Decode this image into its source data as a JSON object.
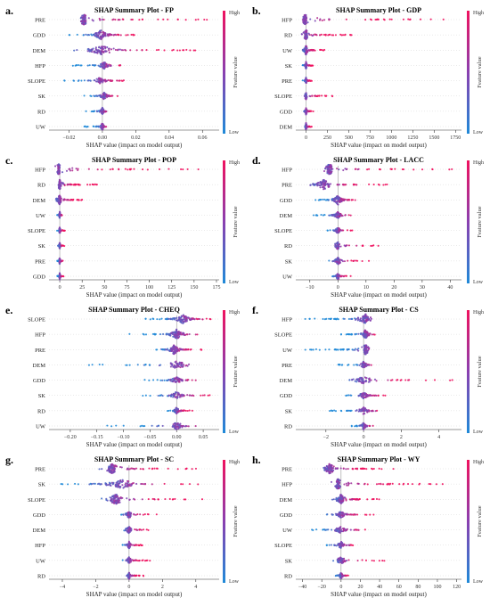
{
  "colorbar": {
    "high_label": "High",
    "low_label": "Low",
    "title": "Feature value",
    "low_color": "#1f8ad8",
    "mid_color": "#8a3fb0",
    "high_color": "#f0115e"
  },
  "xlabel": "SHAP value (impact on model output)",
  "chart_data": [
    {
      "panel": "a.",
      "type": "scatter",
      "title": "SHAP Summary Plot - FP",
      "features": [
        "PRE",
        "GDD",
        "DEM",
        "HFP",
        "SLOPE",
        "SK",
        "RD",
        "UW"
      ],
      "xticks": [
        -0.02,
        0.0,
        0.02,
        0.04,
        0.06
      ],
      "xtick_labels": [
        "−0.02",
        "0.00",
        "0.02",
        "0.04",
        "0.06"
      ],
      "xlim": [
        -0.032,
        0.07
      ],
      "ranges": [
        [
          -0.015,
          0.064
        ],
        [
          -0.022,
          0.021
        ],
        [
          -0.021,
          0.062
        ],
        [
          -0.019,
          0.012
        ],
        [
          -0.028,
          0.014
        ],
        [
          -0.012,
          0.012
        ],
        [
          -0.011,
          0.004
        ],
        [
          -0.011,
          0.003
        ]
      ],
      "peaks": [
        -0.011,
        -0.001,
        0.0,
        0.001,
        -0.002,
        0.001,
        0.0,
        0.0
      ]
    },
    {
      "panel": "b.",
      "type": "scatter",
      "title": "SHAP Summary Plot - GDP",
      "features": [
        "HFP",
        "RD",
        "UW",
        "SK",
        "PRE",
        "SLOPE",
        "GDD",
        "DEM"
      ],
      "xticks": [
        0,
        250,
        500,
        750,
        1000,
        1250,
        1500,
        1750
      ],
      "xtick_labels": [
        "0",
        "250",
        "500",
        "750",
        "1000",
        "1250",
        "1500",
        "1750"
      ],
      "xlim": [
        -120,
        1820
      ],
      "ranges": [
        [
          -70,
          1680
        ],
        [
          -60,
          560
        ],
        [
          -50,
          220
        ],
        [
          -40,
          80
        ],
        [
          -40,
          70
        ],
        [
          -40,
          320
        ],
        [
          -40,
          90
        ],
        [
          -30,
          80
        ]
      ],
      "peaks": [
        -10,
        0,
        0,
        0,
        0,
        0,
        0,
        0
      ]
    },
    {
      "panel": "c.",
      "type": "scatter",
      "title": "SHAP Summary Plot - POP",
      "features": [
        "HFP",
        "RD",
        "DEM",
        "UW",
        "SLOPE",
        "SK",
        "PRE",
        "GDD"
      ],
      "xticks": [
        0,
        25,
        50,
        75,
        100,
        125,
        150,
        175
      ],
      "xtick_labels": [
        "0",
        "25",
        "50",
        "75",
        "100",
        "125",
        "150",
        "175"
      ],
      "xlim": [
        -12,
        178
      ],
      "ranges": [
        [
          -5,
          168
        ],
        [
          -3,
          42
        ],
        [
          -8,
          30
        ],
        [
          -3,
          5
        ],
        [
          -3,
          6
        ],
        [
          -3,
          5
        ],
        [
          -3,
          5
        ],
        [
          -3,
          5
        ]
      ],
      "peaks": [
        -1,
        0,
        0,
        0,
        0,
        0,
        0,
        0
      ]
    },
    {
      "panel": "d.",
      "type": "scatter",
      "title": "SHAP Summary Plot - LACC",
      "features": [
        "HFP",
        "PRE",
        "GDD",
        "DEM",
        "SLOPE",
        "RD",
        "SK",
        "UW"
      ],
      "xticks": [
        -10,
        0,
        10,
        20,
        30,
        40
      ],
      "xtick_labels": [
        "−10",
        "0",
        "10",
        "20",
        "30",
        "40"
      ],
      "xlim": [
        -15,
        44
      ],
      "ranges": [
        [
          -6,
          42
        ],
        [
          -14,
          20
        ],
        [
          -8,
          8
        ],
        [
          -9,
          5
        ],
        [
          -4,
          6
        ],
        [
          -2,
          19
        ],
        [
          -4,
          12
        ],
        [
          -2,
          5
        ]
      ],
      "peaks": [
        -3,
        -5,
        0,
        0,
        0,
        0,
        0,
        0
      ]
    },
    {
      "panel": "e.",
      "type": "scatter",
      "title": "SHAP Summary Plot - CHEQ",
      "features": [
        "SLOPE",
        "HFP",
        "PRE",
        "DEM",
        "GDD",
        "SK",
        "RD",
        "UW"
      ],
      "xticks": [
        -0.2,
        -0.15,
        -0.1,
        -0.05,
        0.0,
        0.05
      ],
      "xtick_labels": [
        "−0.20",
        "−0.15",
        "−0.10",
        "−0.05",
        "0.00",
        "0.05"
      ],
      "xlim": [
        -0.24,
        0.08
      ],
      "ranges": [
        [
          -0.06,
          0.07
        ],
        [
          -0.09,
          0.04
        ],
        [
          -0.05,
          0.05
        ],
        [
          -0.22,
          0.05
        ],
        [
          -0.06,
          0.05
        ],
        [
          -0.07,
          0.07
        ],
        [
          -0.02,
          0.03
        ],
        [
          -0.15,
          0.04
        ]
      ],
      "peaks": [
        0.012,
        0.0,
        -0.005,
        0.0,
        0.0,
        0.0,
        0.0,
        0.0
      ]
    },
    {
      "panel": "f.",
      "type": "scatter",
      "title": "SHAP Summary Plot - CS",
      "features": [
        "HFP",
        "SLOPE",
        "UW",
        "PRE",
        "DEM",
        "GDD",
        "SK",
        "RD"
      ],
      "xticks": [
        -2,
        0,
        2,
        4
      ],
      "xtick_labels": [
        "−2",
        "0",
        "2",
        "4"
      ],
      "xlim": [
        -3.6,
        5.2
      ],
      "ranges": [
        [
          -3.4,
          0.8
        ],
        [
          -1.2,
          0.6
        ],
        [
          -3.3,
          0.5
        ],
        [
          -1.4,
          0.6
        ],
        [
          -1.5,
          4.9
        ],
        [
          -1.0,
          1.6
        ],
        [
          -2.2,
          1.0
        ],
        [
          -0.8,
          0.6
        ]
      ],
      "peaks": [
        0.1,
        0.1,
        0.1,
        0.0,
        0.0,
        0.0,
        0.0,
        0.0
      ]
    },
    {
      "panel": "g.",
      "type": "scatter",
      "title": "SHAP Summary Plot - SC",
      "features": [
        "PRE",
        "SK",
        "SLOPE",
        "GDD",
        "DEM",
        "HFP",
        "UW",
        "RD"
      ],
      "xticks": [
        -4,
        -2,
        0,
        2,
        4
      ],
      "xtick_labels": [
        "−4",
        "−2",
        "0",
        "2",
        "4"
      ],
      "xlim": [
        -4.8,
        5.4
      ],
      "ranges": [
        [
          -1.8,
          4.5
        ],
        [
          -4.3,
          4.4
        ],
        [
          -2.0,
          4.8
        ],
        [
          -0.5,
          1.8
        ],
        [
          -0.5,
          2.0
        ],
        [
          -0.4,
          0.8
        ],
        [
          -0.4,
          1.3
        ],
        [
          -0.3,
          0.9
        ]
      ],
      "peaks": [
        -1.0,
        -0.4,
        -0.8,
        0.0,
        0.0,
        0.0,
        0.0,
        0.0
      ]
    },
    {
      "panel": "h.",
      "type": "scatter",
      "title": "SHAP Summary Plot - WY",
      "features": [
        "PRE",
        "HFP",
        "DEM",
        "GDD",
        "UW",
        "SLOPE",
        "SK",
        "RD"
      ],
      "xticks": [
        -40,
        -20,
        0,
        20,
        40,
        60,
        80,
        100,
        120
      ],
      "xtick_labels": [
        "−40",
        "−20",
        "0",
        "20",
        "40",
        "60",
        "80",
        "100",
        "120"
      ],
      "xlim": [
        -47,
        125
      ],
      "ranges": [
        [
          -25,
          58
        ],
        [
          -10,
          115
        ],
        [
          -12,
          40
        ],
        [
          -20,
          35
        ],
        [
          -40,
          35
        ],
        [
          -15,
          25
        ],
        [
          -18,
          45
        ],
        [
          -8,
          10
        ]
      ],
      "peaks": [
        -12,
        -3,
        0,
        0,
        0,
        0,
        0,
        0
      ]
    }
  ]
}
